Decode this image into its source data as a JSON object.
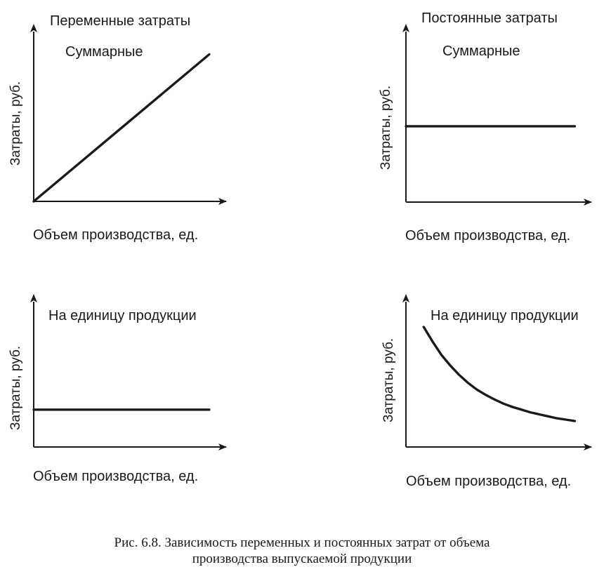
{
  "chart_data": [
    {
      "type": "line",
      "group_title": "Переменные затраты",
      "subtitle": "Суммарные",
      "ylabel": "Затраты, руб.",
      "xlabel": "Объем производства, ед.",
      "xlim": [
        0,
        10
      ],
      "ylim": [
        0,
        10
      ],
      "grid": false,
      "series": [
        {
          "x": [
            0,
            9.5
          ],
          "y": [
            0,
            9.7
          ]
        }
      ]
    },
    {
      "type": "line",
      "group_title": "Постоянные затраты",
      "subtitle": "Суммарные",
      "ylabel": "Затраты, руб.",
      "xlabel": "Объем производства, ед.",
      "xlim": [
        0,
        10
      ],
      "ylim": [
        0,
        10
      ],
      "grid": false,
      "series": [
        {
          "x": [
            0,
            9.5
          ],
          "y": [
            4.7,
            4.7
          ]
        }
      ]
    },
    {
      "type": "line",
      "subtitle": "На единицу продукции",
      "ylabel": "Затраты, руб.",
      "xlabel": "Объем производства, ед.",
      "xlim": [
        0,
        10
      ],
      "ylim": [
        0,
        10
      ],
      "grid": false,
      "series": [
        {
          "x": [
            0,
            9.5
          ],
          "y": [
            2.8,
            2.8
          ]
        }
      ]
    },
    {
      "type": "line",
      "subtitle": "На единицу продукции",
      "ylabel": "Затраты, руб.",
      "xlabel": "Объем производства, ед.",
      "xlim": [
        0,
        10
      ],
      "ylim": [
        0,
        10
      ],
      "grid": false,
      "series": [
        {
          "x": [
            1,
            1.5,
            2,
            2.5,
            3,
            3.5,
            4,
            4.5,
            5,
            5.5,
            6,
            6.5,
            7,
            7.5,
            8,
            8.5,
            9,
            9.5
          ],
          "y": [
            9.0,
            7.9,
            6.9,
            6.1,
            5.4,
            4.8,
            4.3,
            3.9,
            3.55,
            3.25,
            3.0,
            2.8,
            2.6,
            2.45,
            2.3,
            2.15,
            2.05,
            1.95
          ]
        }
      ]
    }
  ],
  "caption": {
    "line1": "Рис. 6.8. Зависимость переменных и постоянных затрат от объема",
    "line2": "производства выпускаемой продукции"
  }
}
